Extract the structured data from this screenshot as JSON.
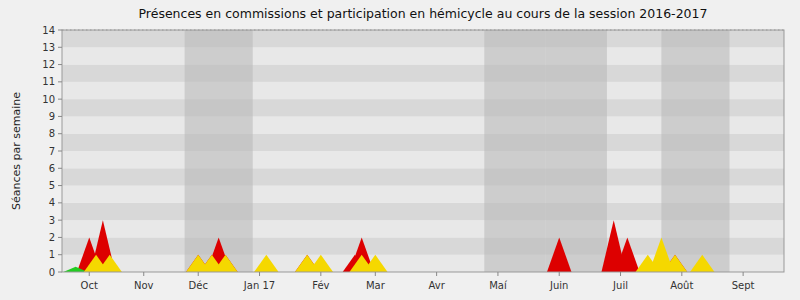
{
  "chart_data": {
    "type": "area",
    "title": "Présences en commissions et participation en hémicycle au cours de la session 2016-2017",
    "y_label": "Séances par semaine",
    "xlim": [
      -0.5,
      52.5
    ],
    "xticks": [
      {
        "value": 1.5,
        "label": "Oct"
      },
      {
        "value": 5.5,
        "label": "Nov"
      },
      {
        "value": 9.5,
        "label": "Déc"
      },
      {
        "value": 14,
        "label": "Jan 17"
      },
      {
        "value": 18.5,
        "label": "Fév"
      },
      {
        "value": 22.5,
        "label": "Mar"
      },
      {
        "value": 27,
        "label": "Avr"
      },
      {
        "value": 31.5,
        "label": "Maí"
      },
      {
        "value": 36,
        "label": "Juin"
      },
      {
        "value": 40.5,
        "label": "Juil"
      },
      {
        "value": 45,
        "label": "Août"
      },
      {
        "value": 49.5,
        "label": "Sept"
      }
    ],
    "ylim": [
      0,
      14
    ],
    "yticks": [
      0,
      1,
      2,
      3,
      4,
      5,
      6,
      7,
      8,
      9,
      10,
      11,
      12,
      13,
      14
    ],
    "grid": true,
    "shaded_ranges": [
      {
        "start": 8.5,
        "end": 13.5
      },
      {
        "start": 30.5,
        "end": 35
      },
      {
        "start": 35,
        "end": 39.5
      },
      {
        "start": 43.5,
        "end": 48.5
      }
    ],
    "reference_line": 14,
    "series": [
      {
        "color": "#dd0000",
        "x": [
          1.5,
          2.5,
          9.5,
          10.5,
          11,
          11.5,
          17.5,
          21,
          21.5,
          36,
          40,
          41,
          43.5,
          44.5
        ],
        "values": [
          2,
          3,
          1,
          1,
          2,
          1,
          1,
          1,
          2,
          2,
          3,
          2,
          1,
          1
        ]
      },
      {
        "colors": [
          "#22cc22",
          "#f5d800",
          "#f5d800",
          "#f5d800",
          "#f5d800",
          "#f5d800",
          "#f5d800",
          "#f5d800",
          "#f5d800",
          "#f5d800",
          "#f5d800",
          "#f5d800",
          "#f5d800",
          "#f5d800",
          "#f5d800"
        ],
        "x": [
          0.5,
          2,
          3,
          9.5,
          10.5,
          11.5,
          14.5,
          17.5,
          18.5,
          21.5,
          22.5,
          42.5,
          43.5,
          44.5,
          46.5
        ],
        "values": [
          0.3,
          1,
          1,
          1,
          1,
          1,
          1,
          1,
          1,
          1,
          1,
          1,
          2,
          1,
          1
        ]
      }
    ]
  }
}
